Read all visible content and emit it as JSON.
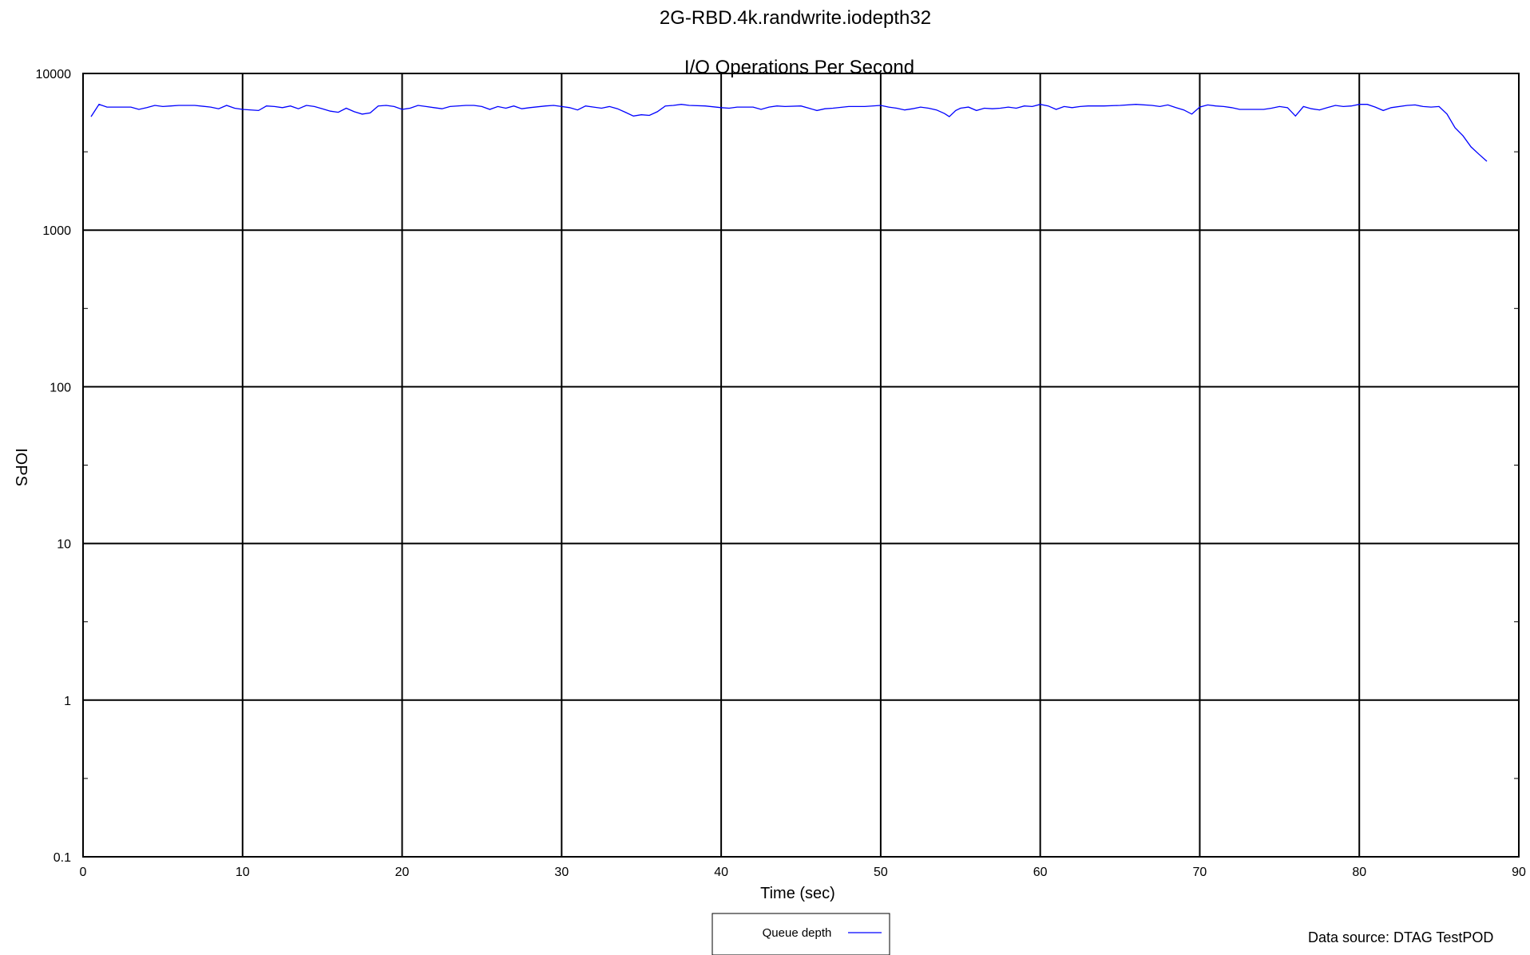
{
  "chart_data": {
    "type": "line",
    "title": "2G-RBD.4k.randwrite.iodepth32",
    "subtitle": "I/O Operations Per Second",
    "xlabel": "Time (sec)",
    "ylabel": "IOPS",
    "xlim": [
      0,
      90
    ],
    "ylim": [
      0.1,
      10000
    ],
    "yscale": "log",
    "grid": true,
    "x_ticks": [
      "0",
      "10",
      "20",
      "30",
      "40",
      "50",
      "60",
      "70",
      "80",
      "90"
    ],
    "y_ticks": [
      "0.1",
      "1",
      "10",
      "100",
      "1000",
      "10000"
    ],
    "legend": {
      "placement": "bottom-center",
      "label": "Queue depth"
    },
    "source_note": "Data source: DTAG TestPOD",
    "series": [
      {
        "name": "Queue depth",
        "color": "#0000ff",
        "points": [
          [
            0.5,
            5300
          ],
          [
            1.0,
            6350
          ],
          [
            1.5,
            6100
          ],
          [
            2.0,
            6100
          ],
          [
            3.0,
            6100
          ],
          [
            3.5,
            5900
          ],
          [
            4.0,
            6050
          ],
          [
            4.5,
            6250
          ],
          [
            5.0,
            6150
          ],
          [
            5.5,
            6200
          ],
          [
            6.0,
            6250
          ],
          [
            7.0,
            6250
          ],
          [
            8.0,
            6100
          ],
          [
            8.5,
            5950
          ],
          [
            9.0,
            6250
          ],
          [
            9.5,
            6000
          ],
          [
            10.0,
            5900
          ],
          [
            11.0,
            5800
          ],
          [
            11.5,
            6200
          ],
          [
            12.0,
            6150
          ],
          [
            12.5,
            6050
          ],
          [
            13.0,
            6200
          ],
          [
            13.5,
            5950
          ],
          [
            14.0,
            6250
          ],
          [
            14.5,
            6150
          ],
          [
            15.0,
            5950
          ],
          [
            15.5,
            5750
          ],
          [
            16.0,
            5650
          ],
          [
            16.5,
            6000
          ],
          [
            17.0,
            5700
          ],
          [
            17.5,
            5500
          ],
          [
            18.0,
            5600
          ],
          [
            18.5,
            6200
          ],
          [
            19.0,
            6250
          ],
          [
            19.5,
            6150
          ],
          [
            20.0,
            5900
          ],
          [
            20.5,
            6000
          ],
          [
            21.0,
            6250
          ],
          [
            21.5,
            6150
          ],
          [
            22.0,
            6050
          ],
          [
            22.5,
            5950
          ],
          [
            23.0,
            6150
          ],
          [
            24.0,
            6250
          ],
          [
            24.5,
            6250
          ],
          [
            25.0,
            6150
          ],
          [
            25.5,
            5900
          ],
          [
            26.0,
            6150
          ],
          [
            26.5,
            6000
          ],
          [
            27.0,
            6200
          ],
          [
            27.5,
            5950
          ],
          [
            28.0,
            6050
          ],
          [
            29.0,
            6200
          ],
          [
            29.5,
            6250
          ],
          [
            30.0,
            6150
          ],
          [
            30.5,
            6050
          ],
          [
            31.0,
            5850
          ],
          [
            31.5,
            6200
          ],
          [
            32.0,
            6100
          ],
          [
            32.5,
            6000
          ],
          [
            33.0,
            6150
          ],
          [
            33.5,
            5950
          ],
          [
            34.0,
            5650
          ],
          [
            34.5,
            5350
          ],
          [
            35.0,
            5450
          ],
          [
            35.5,
            5400
          ],
          [
            36.0,
            5700
          ],
          [
            36.5,
            6200
          ],
          [
            37.0,
            6250
          ],
          [
            37.5,
            6350
          ],
          [
            38.0,
            6250
          ],
          [
            39.0,
            6200
          ],
          [
            40.0,
            6050
          ],
          [
            40.5,
            6000
          ],
          [
            41.0,
            6100
          ],
          [
            42.0,
            6100
          ],
          [
            42.5,
            5900
          ],
          [
            43.0,
            6100
          ],
          [
            43.5,
            6200
          ],
          [
            44.0,
            6150
          ],
          [
            45.0,
            6200
          ],
          [
            45.5,
            6000
          ],
          [
            46.0,
            5800
          ],
          [
            46.5,
            5950
          ],
          [
            47.0,
            6000
          ],
          [
            48.0,
            6150
          ],
          [
            49.0,
            6150
          ],
          [
            50.0,
            6250
          ],
          [
            50.5,
            6100
          ],
          [
            51.0,
            6000
          ],
          [
            51.5,
            5850
          ],
          [
            52.0,
            5950
          ],
          [
            52.5,
            6100
          ],
          [
            53.0,
            6000
          ],
          [
            53.5,
            5850
          ],
          [
            54.0,
            5550
          ],
          [
            54.3,
            5300
          ],
          [
            54.7,
            5800
          ],
          [
            55.0,
            6000
          ],
          [
            55.5,
            6100
          ],
          [
            56.0,
            5800
          ],
          [
            56.5,
            6000
          ],
          [
            57.0,
            5950
          ],
          [
            57.5,
            6000
          ],
          [
            58.0,
            6100
          ],
          [
            58.5,
            6000
          ],
          [
            59.0,
            6200
          ],
          [
            59.5,
            6150
          ],
          [
            60.0,
            6350
          ],
          [
            60.5,
            6200
          ],
          [
            61.0,
            5900
          ],
          [
            61.5,
            6150
          ],
          [
            62.0,
            6050
          ],
          [
            62.5,
            6150
          ],
          [
            63.0,
            6200
          ],
          [
            64.0,
            6200
          ],
          [
            65.0,
            6250
          ],
          [
            66.0,
            6350
          ],
          [
            67.0,
            6250
          ],
          [
            67.5,
            6150
          ],
          [
            68.0,
            6300
          ],
          [
            68.5,
            6050
          ],
          [
            69.0,
            5850
          ],
          [
            69.5,
            5500
          ],
          [
            70.0,
            6100
          ],
          [
            70.5,
            6300
          ],
          [
            71.0,
            6200
          ],
          [
            71.5,
            6150
          ],
          [
            72.0,
            6050
          ],
          [
            72.5,
            5900
          ],
          [
            73.0,
            5900
          ],
          [
            74.0,
            5900
          ],
          [
            74.5,
            6000
          ],
          [
            75.0,
            6150
          ],
          [
            75.5,
            6050
          ],
          [
            76.0,
            5350
          ],
          [
            76.5,
            6150
          ],
          [
            77.0,
            5950
          ],
          [
            77.5,
            5850
          ],
          [
            78.0,
            6050
          ],
          [
            78.5,
            6250
          ],
          [
            79.0,
            6150
          ],
          [
            79.5,
            6200
          ],
          [
            80.0,
            6350
          ],
          [
            80.5,
            6350
          ],
          [
            81.0,
            6100
          ],
          [
            81.5,
            5800
          ],
          [
            82.0,
            6050
          ],
          [
            83.0,
            6250
          ],
          [
            83.5,
            6300
          ],
          [
            84.0,
            6150
          ],
          [
            84.5,
            6100
          ],
          [
            85.0,
            6150
          ],
          [
            85.5,
            5500
          ],
          [
            86.0,
            4500
          ],
          [
            86.5,
            4000
          ],
          [
            87.0,
            3400
          ],
          [
            87.5,
            3050
          ],
          [
            88.0,
            2750
          ]
        ]
      }
    ]
  }
}
